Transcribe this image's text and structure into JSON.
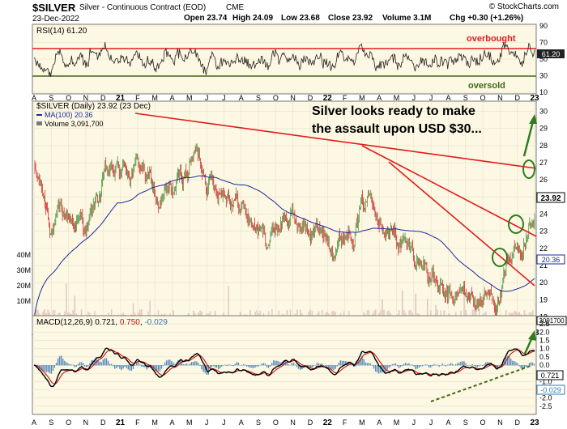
{
  "header": {
    "symbol": "$SILVER",
    "description": "Silver - Continuous Contract (EOD)",
    "exchange": "CME",
    "date": "23-Dec-2022",
    "open": "Open 23.74",
    "high": "High 24.09",
    "low": "Low 23.68",
    "close": "Close 23.92",
    "volume": "Volume 3.1M",
    "change": "Chg +0.30 (+1.26%)",
    "copyright": "© StockCharts.com"
  },
  "colors": {
    "panel_bg": "#fdf8e4",
    "up": "#2e8b2e",
    "down": "#cc1010",
    "ma_line": "#1a2a9a",
    "trend": "#e31b1b",
    "annotation": "#2f7d1f",
    "macd_line": "#000000",
    "signal_line": "#cc1010",
    "histogram": "#3a78b0"
  },
  "chart_data": [
    {
      "type": "line",
      "panel": "RSI",
      "title": "RSI(14) 61.20",
      "last_value": "61.20",
      "ylim": [
        10,
        90
      ],
      "yticks": [
        "90",
        "70",
        "50",
        "30",
        "10"
      ],
      "levels": [
        70,
        30
      ],
      "level_labels": [
        "overbought",
        "oversold"
      ],
      "x_months": [
        "A",
        "S",
        "O",
        "N",
        "D",
        "21",
        "F",
        "M",
        "A",
        "M",
        "J",
        "J",
        "A",
        "S",
        "O",
        "N",
        "D",
        "22",
        "F",
        "M",
        "A",
        "M",
        "J",
        "J",
        "A",
        "S",
        "O",
        "N",
        "D",
        "23"
      ]
    },
    {
      "type": "candlestick",
      "panel": "price",
      "title": "$SILVER (Daily) 23.92 (23 Dec)",
      "legend": [
        "MA(100) 20.36",
        "Volume 3,091,700"
      ],
      "last_price": "23.92",
      "ma_value": "20.36",
      "ylim": [
        17.6,
        30.5
      ],
      "yticks": [
        "30",
        "29",
        "28",
        "27",
        "26",
        "25",
        "24",
        "23",
        "22",
        "21",
        "20",
        "19",
        "18"
      ],
      "volume_ticks": [
        "40M",
        "30M",
        "20M",
        "10M"
      ],
      "volume_label": "3091700",
      "series_monthly_close": {
        "months": [
          "2020-08",
          "2020-09",
          "2020-10",
          "2020-11",
          "2020-12",
          "2021-01",
          "2021-02",
          "2021-03",
          "2021-04",
          "2021-05",
          "2021-06",
          "2021-07",
          "2021-08",
          "2021-09",
          "2021-10",
          "2021-11",
          "2021-12",
          "2022-01",
          "2022-02",
          "2022-03",
          "2022-04",
          "2022-05",
          "2022-06",
          "2022-07",
          "2022-08",
          "2022-09",
          "2022-10",
          "2022-11",
          "2022-12"
        ],
        "close": [
          26.5,
          23.5,
          23.8,
          23.2,
          26.0,
          26.5,
          26.8,
          24.5,
          25.5,
          27.5,
          26.0,
          25.5,
          23.8,
          22.5,
          24.0,
          23.2,
          22.8,
          22.5,
          23.8,
          25.5,
          23.0,
          21.8,
          21.0,
          18.7,
          19.2,
          19.0,
          19.3,
          21.5,
          23.92
        ]
      },
      "annotation": [
        "Silver looks ready to make",
        "the assault upon USD $30..."
      ]
    },
    {
      "type": "line",
      "panel": "MACD",
      "title_prefix": "MACD(12,26,9) ",
      "macd": "0.721",
      "signal": "0.750",
      "histogram": "-0.029",
      "ylim": [
        -2.9,
        2.9
      ],
      "yticks": [
        "2.5",
        "2.0",
        "1.5",
        "1.0",
        "0.5",
        "0.0",
        "-0.5",
        "-1.0",
        "-1.5",
        "-2.0",
        "-2.5"
      ],
      "last_macd_label": "0.721",
      "last_hist_label": "-0.029"
    }
  ]
}
